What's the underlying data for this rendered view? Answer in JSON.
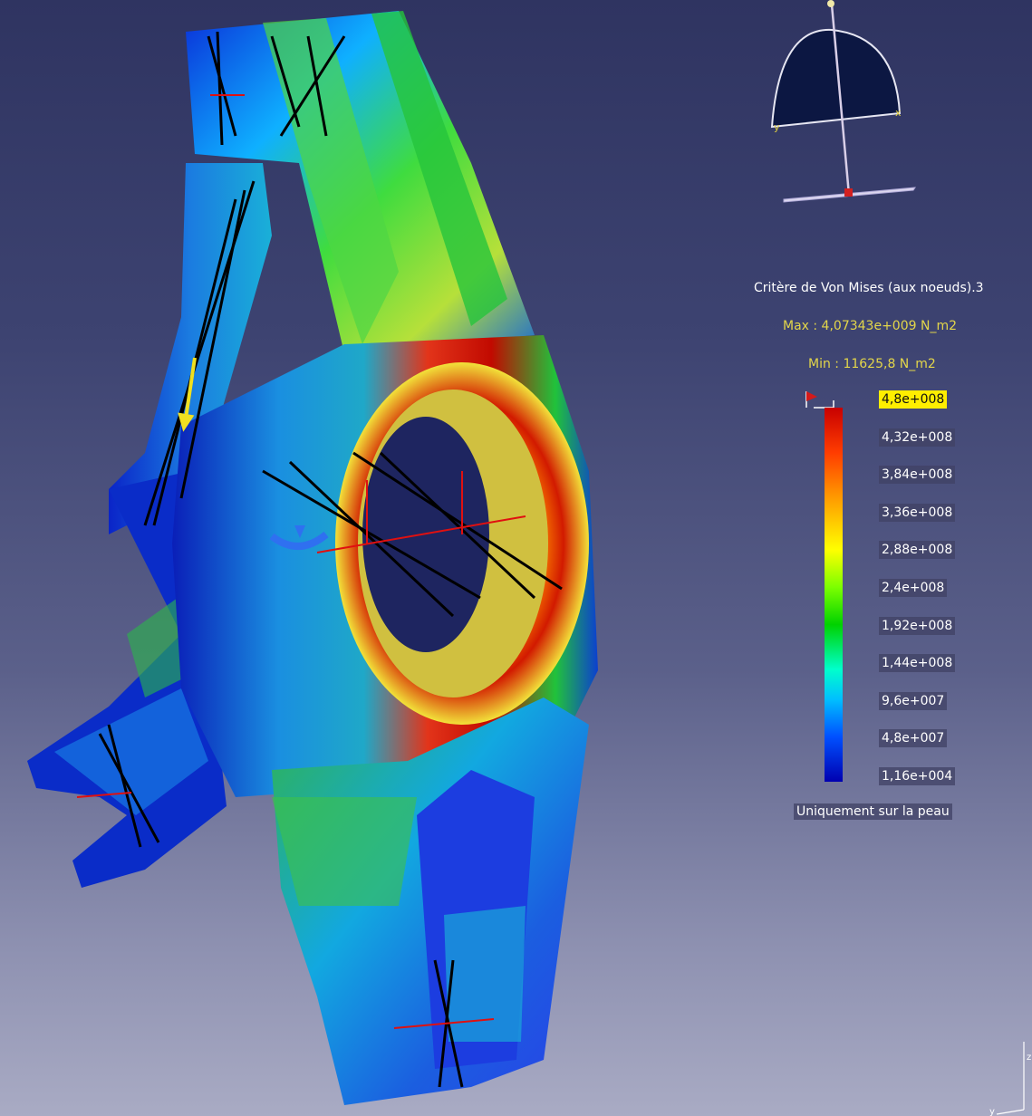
{
  "legend": {
    "title": "Critère de Von Mises (aux noeuds).3",
    "max": "Max : 4,07343e+009 N_m2",
    "min": "Min : 11625,8 N_m2",
    "ticks": [
      "4,8e+008",
      "4,32e+008",
      "3,84e+008",
      "3,36e+008",
      "2,88e+008",
      "2,4e+008",
      "1,92e+008",
      "1,44e+008",
      "9,6e+007",
      "4,8e+007",
      "1,16e+004"
    ],
    "selected_tick": "4,8e+008",
    "skin_note": "Uniquement sur la peau"
  },
  "compass": {
    "axis_x": "x",
    "axis_y": "y"
  },
  "axis_triad": {
    "z": "z",
    "y": "y"
  },
  "colors": {
    "selection_highlight": "#ffee00",
    "legend_text": "#ffffff",
    "max_min_text": "#e3d64a",
    "background_top": "#2f3461",
    "background_bottom": "#a9abc4"
  }
}
